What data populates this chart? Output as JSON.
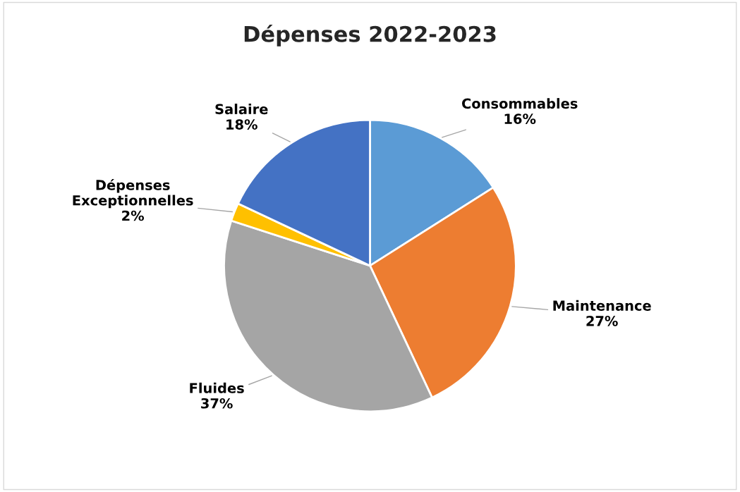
{
  "chart_data": {
    "type": "pie",
    "title": "Dépenses 2022-2023",
    "categories": [
      "Consommables",
      "Maintenance",
      "Fluides",
      "Dépenses Exceptionnelles",
      "Salaire"
    ],
    "values": [
      16,
      27,
      37,
      2,
      18
    ],
    "value_labels": [
      "16%",
      "27%",
      "37%",
      "2%",
      "18%"
    ],
    "colors": [
      "#5b9bd5",
      "#ed7d31",
      "#a5a5a5",
      "#ffc000",
      "#4472c4"
    ],
    "legend": false
  }
}
